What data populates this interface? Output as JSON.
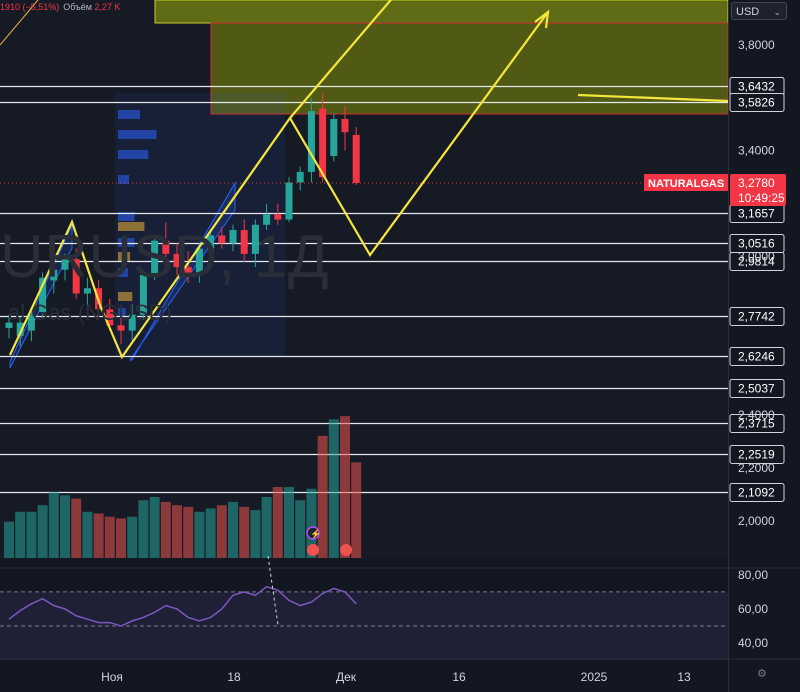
{
  "header": {
    "change_text": "1910 (−5,51%)",
    "volume_label": "Объём",
    "volume_value": "2,27 K"
  },
  "currency_selector": {
    "value": "USD"
  },
  "watermark": {
    "symbol": "URUSD, 1Д",
    "name": "al Gas (NGUSD)"
  },
  "symbol_tag": {
    "name": "NATURALGAS",
    "price": "3,2780",
    "countdown": "10:49:25"
  },
  "chart_data": [
    {
      "type": "candlestick",
      "symbol": "NATURALGAS",
      "title": "",
      "ylim": [
        1.86,
        3.97
      ],
      "y_ticks": [
        "3,8000",
        "3,4000",
        "3,0000",
        "2,4000",
        "2,2000",
        "2,0000"
      ],
      "x_ticks": [
        "Ноя",
        "18",
        "Дек",
        "16",
        "2025",
        "13"
      ],
      "level_lines": [
        3.6432,
        3.5826,
        3.1657,
        3.0516,
        2.9814,
        2.7742,
        2.6246,
        2.5037,
        2.3715,
        2.2519,
        2.1092
      ],
      "level_labels": [
        "3,6432",
        "3,5826",
        "3,1657",
        "3,0516",
        "2,9814",
        "2,7742",
        "2,6246",
        "2,5037",
        "2,3715",
        "2,2519",
        "2,1092"
      ],
      "current_price": 3.278,
      "candles": [
        {
          "o": 2.73,
          "h": 2.78,
          "l": 2.69,
          "c": 2.75
        },
        {
          "o": 2.7,
          "h": 2.77,
          "l": 2.66,
          "c": 2.75
        },
        {
          "o": 2.72,
          "h": 2.8,
          "l": 2.68,
          "c": 2.78
        },
        {
          "o": 2.79,
          "h": 2.94,
          "l": 2.77,
          "c": 2.92
        },
        {
          "o": 2.91,
          "h": 2.97,
          "l": 2.86,
          "c": 2.95
        },
        {
          "o": 2.95,
          "h": 3.01,
          "l": 2.91,
          "c": 2.99
        },
        {
          "o": 2.99,
          "h": 3.03,
          "l": 2.84,
          "c": 2.86
        },
        {
          "o": 2.86,
          "h": 2.92,
          "l": 2.8,
          "c": 2.88
        },
        {
          "o": 2.88,
          "h": 2.91,
          "l": 2.78,
          "c": 2.8
        },
        {
          "o": 2.8,
          "h": 2.84,
          "l": 2.72,
          "c": 2.74
        },
        {
          "o": 2.74,
          "h": 2.79,
          "l": 2.67,
          "c": 2.72
        },
        {
          "o": 2.72,
          "h": 2.82,
          "l": 2.68,
          "c": 2.78
        },
        {
          "o": 2.78,
          "h": 2.95,
          "l": 2.76,
          "c": 2.93
        },
        {
          "o": 2.93,
          "h": 3.08,
          "l": 2.91,
          "c": 3.06
        },
        {
          "o": 3.06,
          "h": 3.13,
          "l": 2.99,
          "c": 3.01
        },
        {
          "o": 3.01,
          "h": 3.05,
          "l": 2.93,
          "c": 2.96
        },
        {
          "o": 2.96,
          "h": 3.02,
          "l": 2.9,
          "c": 2.93
        },
        {
          "o": 2.93,
          "h": 3.05,
          "l": 2.9,
          "c": 3.03
        },
        {
          "o": 3.03,
          "h": 3.1,
          "l": 3.0,
          "c": 3.08
        },
        {
          "o": 3.08,
          "h": 3.11,
          "l": 3.03,
          "c": 3.05
        },
        {
          "o": 3.05,
          "h": 3.12,
          "l": 3.02,
          "c": 3.1
        },
        {
          "o": 3.1,
          "h": 3.14,
          "l": 2.98,
          "c": 3.01
        },
        {
          "o": 3.01,
          "h": 3.14,
          "l": 2.96,
          "c": 3.12
        },
        {
          "o": 3.12,
          "h": 3.2,
          "l": 3.1,
          "c": 3.16
        },
        {
          "o": 3.16,
          "h": 3.2,
          "l": 3.12,
          "c": 3.14
        },
        {
          "o": 3.14,
          "h": 3.3,
          "l": 3.13,
          "c": 3.28
        },
        {
          "o": 3.28,
          "h": 3.34,
          "l": 3.25,
          "c": 3.32
        },
        {
          "o": 3.32,
          "h": 3.6,
          "l": 3.28,
          "c": 3.55
        },
        {
          "o": 3.56,
          "h": 3.62,
          "l": 3.28,
          "c": 3.3
        },
        {
          "o": 3.38,
          "h": 3.54,
          "l": 3.36,
          "c": 3.52
        },
        {
          "o": 3.52,
          "h": 3.57,
          "l": 3.4,
          "c": 3.47
        },
        {
          "o": 3.46,
          "h": 3.49,
          "l": 3.27,
          "c": 3.278
        }
      ],
      "volume": [
        22,
        28,
        28,
        32,
        40,
        38,
        36,
        28,
        27,
        25,
        24,
        25,
        35,
        37,
        34,
        32,
        31,
        28,
        30,
        32,
        34,
        31,
        29,
        37,
        43,
        43,
        35,
        42,
        74,
        84,
        86,
        58
      ]
    },
    {
      "type": "line",
      "title": "",
      "ylim": [
        33,
        84
      ],
      "y_ticks": [
        "80,00",
        "60,00",
        "40,00"
      ],
      "values": [
        54,
        59,
        63,
        66,
        62,
        60,
        56,
        54,
        52,
        52,
        50,
        53,
        55,
        58,
        62,
        60,
        55,
        53,
        55,
        60,
        68,
        70,
        68,
        73,
        71,
        65,
        62,
        64,
        69,
        72,
        70,
        63
      ]
    }
  ]
}
